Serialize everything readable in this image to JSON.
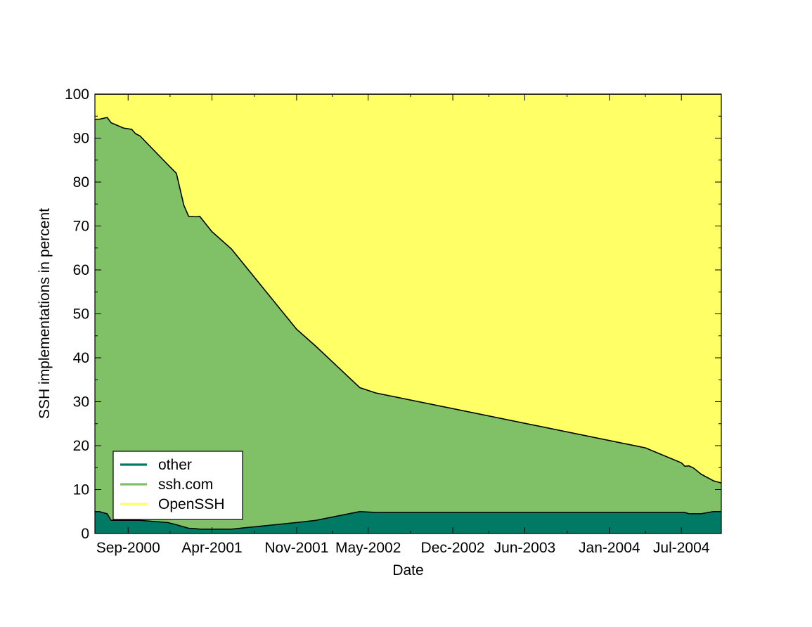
{
  "chart_data": {
    "type": "area",
    "stacked": true,
    "xlabel": "Date",
    "ylabel": "SSH implementations in percent",
    "ylim": [
      0,
      100
    ],
    "yticks": [
      0,
      10,
      20,
      30,
      40,
      50,
      60,
      70,
      80,
      90,
      100
    ],
    "xlim": [
      "2000-06-09",
      "2004-10-10"
    ],
    "xtick_labels": [
      {
        "date": "2000-09-01",
        "label": "Sep-2000"
      },
      {
        "date": "2001-04-01",
        "label": "Apr-2001"
      },
      {
        "date": "2001-11-01",
        "label": "Nov-2001"
      },
      {
        "date": "2002-05-01",
        "label": "May-2002"
      },
      {
        "date": "2002-12-01",
        "label": "Dec-2002"
      },
      {
        "date": "2003-06-01",
        "label": "Jun-2003"
      },
      {
        "date": "2004-01-01",
        "label": "Jan-2004"
      },
      {
        "date": "2004-07-01",
        "label": "Jul-2004"
      }
    ],
    "grid": false,
    "legend_position": "bottom-left",
    "legend": [
      "other",
      "ssh.com",
      "OpenSSH"
    ],
    "colors": {
      "other": "#007a64",
      "ssh.com": "#80c066",
      "OpenSSH": "#ffff66",
      "outline": "#000000"
    },
    "x": [
      "2000-06-09",
      "2000-06-20",
      "2000-07-10",
      "2000-07-20",
      "2000-08-20",
      "2000-09-10",
      "2000-09-20",
      "2000-10-01",
      "2000-12-10",
      "2001-01-01",
      "2001-01-20",
      "2001-02-01",
      "2001-02-20",
      "2001-03-01",
      "2001-04-01",
      "2001-05-20",
      "2001-11-01",
      "2001-12-20",
      "2002-04-10",
      "2002-05-20",
      "2004-04-01",
      "2004-07-01",
      "2004-07-10",
      "2004-07-20",
      "2004-08-01",
      "2004-08-20",
      "2004-09-20",
      "2004-10-10"
    ],
    "series": [
      {
        "name": "other",
        "values": [
          5.0,
          5.0,
          4.5,
          3.0,
          3.0,
          3.0,
          3.0,
          3.0,
          2.5,
          2.0,
          1.5,
          1.2,
          1.1,
          1.0,
          1.0,
          1.0,
          2.5,
          3.0,
          5.0,
          4.8,
          4.8,
          4.8,
          4.8,
          4.5,
          4.5,
          4.5,
          5.0,
          5.0
        ]
      },
      {
        "name": "ssh.com",
        "values": [
          89.3,
          89.3,
          90.2,
          90.5,
          89.3,
          89.0,
          88.0,
          87.5,
          81.5,
          80.0,
          73.2,
          71.0,
          71.0,
          71.2,
          67.7,
          63.8,
          44.0,
          39.6,
          28.2,
          27.2,
          14.7,
          11.3,
          10.5,
          10.9,
          10.4,
          9.0,
          7.0,
          6.5
        ]
      },
      {
        "name": "OpenSSH",
        "values": [
          5.7,
          5.7,
          5.3,
          6.5,
          7.7,
          8.0,
          9.0,
          9.5,
          16.0,
          18.0,
          25.3,
          27.8,
          27.9,
          27.8,
          31.3,
          35.2,
          53.5,
          57.4,
          66.8,
          68.0,
          80.5,
          83.9,
          84.7,
          84.6,
          85.1,
          86.5,
          88.0,
          88.5
        ]
      }
    ]
  }
}
